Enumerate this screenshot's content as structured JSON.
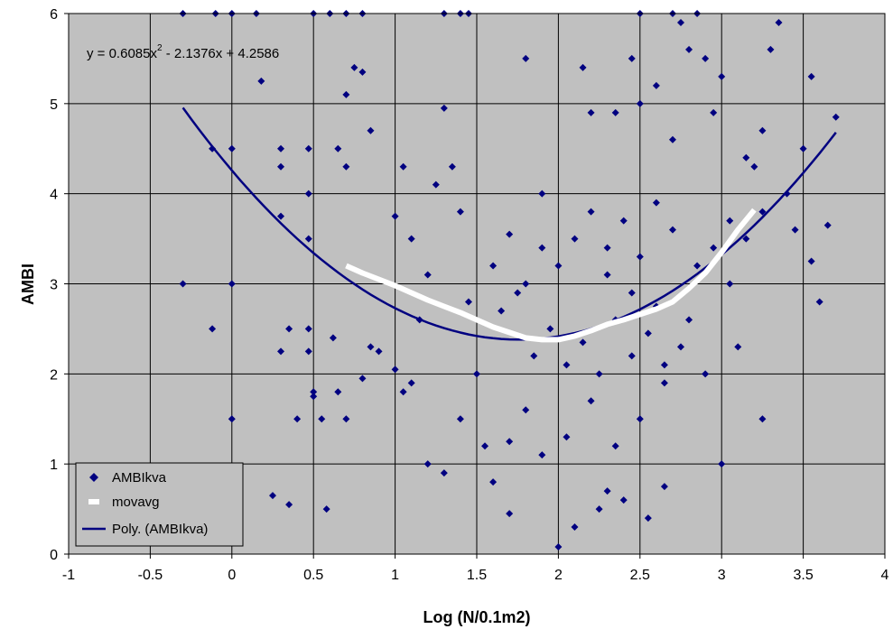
{
  "colors": {
    "plot_bg": "#c0c0c0",
    "points": "#000080",
    "movavg": "#ffffff",
    "trend": "#000080",
    "grid": "#000000"
  },
  "chart_data": {
    "type": "scatter",
    "xlabel": "Log (N/0.1m2)",
    "ylabel": "AMBI",
    "xlim": [
      -1,
      4
    ],
    "ylim": [
      0,
      6
    ],
    "x_ticks": [
      "-1",
      "-0.5",
      "0",
      "0.5",
      "1",
      "1.5",
      "2",
      "2.5",
      "3",
      "3.5",
      "4"
    ],
    "y_ticks": [
      "0",
      "1",
      "2",
      "3",
      "4",
      "5",
      "6"
    ],
    "grid": true,
    "legend_position": "bottom-left",
    "equation": {
      "prefix": "y = 0.6085x",
      "sup": "2",
      "suffix": " - 2.1376x + 4.2586"
    },
    "trendline": {
      "name": "Poly. (AMBIkva)",
      "a": 0.6085,
      "b": -2.1376,
      "c": 4.2586,
      "x_range": [
        -0.3,
        3.7
      ]
    },
    "series": [
      {
        "name": "AMBIkva",
        "points": [
          [
            0,
            6
          ],
          [
            -0.3,
            3
          ],
          [
            -0.12,
            2.5
          ],
          [
            -0.12,
            4.5
          ],
          [
            0,
            4.5
          ],
          [
            0,
            3
          ],
          [
            0,
            1.5
          ],
          [
            -0.3,
            6
          ],
          [
            -0.1,
            6
          ],
          [
            0.15,
            6
          ],
          [
            0.5,
            6
          ],
          [
            0.6,
            6
          ],
          [
            0.7,
            6
          ],
          [
            0.8,
            6
          ],
          [
            1.3,
            6
          ],
          [
            1.4,
            6
          ],
          [
            1.45,
            6
          ],
          [
            2.5,
            6
          ],
          [
            2.7,
            6
          ],
          [
            2.85,
            6
          ],
          [
            0.18,
            5.25
          ],
          [
            0.3,
            4.5
          ],
          [
            0.3,
            4.3
          ],
          [
            0.3,
            3.75
          ],
          [
            0.3,
            2.25
          ],
          [
            0.35,
            2.5
          ],
          [
            0.47,
            4
          ],
          [
            0.47,
            4.5
          ],
          [
            0.47,
            3.5
          ],
          [
            0.47,
            2.25
          ],
          [
            0.47,
            2.5
          ],
          [
            0.5,
            1.8
          ],
          [
            0.5,
            1.75
          ],
          [
            0.55,
            1.5
          ],
          [
            0.25,
            0.65
          ],
          [
            0.35,
            0.55
          ],
          [
            0.58,
            0.5
          ],
          [
            0.4,
            1.5
          ],
          [
            0.65,
            4.5
          ],
          [
            0.7,
            4.3
          ],
          [
            0.75,
            5.4
          ],
          [
            0.8,
            5.35
          ],
          [
            0.85,
            4.7
          ],
          [
            0.7,
            5.1
          ],
          [
            0.62,
            2.4
          ],
          [
            0.65,
            1.8
          ],
          [
            0.7,
            1.5
          ],
          [
            0.8,
            1.95
          ],
          [
            0.85,
            2.3
          ],
          [
            0.9,
            2.25
          ],
          [
            1.0,
            2.05
          ],
          [
            1.05,
            1.8
          ],
          [
            1.1,
            1.9
          ],
          [
            1.15,
            2.6
          ],
          [
            1.0,
            3.75
          ],
          [
            1.05,
            4.3
          ],
          [
            1.1,
            3.5
          ],
          [
            1.2,
            3.1
          ],
          [
            1.25,
            4.1
          ],
          [
            1.3,
            4.95
          ],
          [
            1.35,
            4.3
          ],
          [
            1.4,
            3.8
          ],
          [
            1.45,
            2.8
          ],
          [
            1.5,
            2.0
          ],
          [
            1.55,
            1.2
          ],
          [
            1.6,
            0.8
          ],
          [
            1.7,
            0.45
          ],
          [
            1.8,
            5.5
          ],
          [
            1.9,
            4.0
          ],
          [
            2.0,
            0.08
          ],
          [
            2.1,
            0.3
          ],
          [
            2.15,
            5.4
          ],
          [
            2.2,
            4.9
          ],
          [
            2.25,
            0.5
          ],
          [
            2.3,
            0.7
          ],
          [
            2.35,
            4.9
          ],
          [
            2.4,
            0.6
          ],
          [
            2.45,
            5.5
          ],
          [
            2.5,
            5.0
          ],
          [
            2.55,
            0.4
          ],
          [
            2.6,
            5.2
          ],
          [
            2.65,
            0.75
          ],
          [
            2.7,
            4.6
          ],
          [
            2.75,
            5.9
          ],
          [
            2.8,
            5.6
          ],
          [
            2.9,
            5.5
          ],
          [
            2.95,
            4.9
          ],
          [
            3.0,
            5.3
          ],
          [
            3.05,
            3.0
          ],
          [
            3.1,
            2.3
          ],
          [
            3.15,
            4.4
          ],
          [
            3.2,
            4.3
          ],
          [
            3.25,
            4.7
          ],
          [
            3.3,
            5.6
          ],
          [
            3.35,
            5.9
          ],
          [
            3.4,
            4.0
          ],
          [
            3.45,
            3.6
          ],
          [
            3.5,
            4.5
          ],
          [
            3.55,
            3.25
          ],
          [
            3.6,
            2.8
          ],
          [
            3.65,
            3.65
          ],
          [
            3.7,
            4.85
          ],
          [
            3.55,
            5.3
          ],
          [
            3.25,
            1.5
          ],
          [
            3.0,
            1.0
          ],
          [
            2.9,
            2.0
          ],
          [
            1.2,
            1.0
          ],
          [
            1.3,
            0.9
          ],
          [
            1.4,
            1.5
          ],
          [
            1.7,
            1.25
          ],
          [
            1.8,
            1.6
          ],
          [
            1.9,
            1.1
          ],
          [
            2.05,
            1.3
          ],
          [
            2.2,
            1.7
          ],
          [
            2.35,
            1.2
          ],
          [
            2.5,
            1.5
          ],
          [
            2.65,
            1.9
          ],
          [
            2.8,
            2.6
          ],
          [
            1.6,
            3.2
          ],
          [
            1.7,
            3.55
          ],
          [
            1.8,
            3.0
          ],
          [
            1.9,
            3.4
          ],
          [
            2.0,
            3.2
          ],
          [
            2.1,
            3.5
          ],
          [
            2.2,
            3.8
          ],
          [
            2.3,
            3.4
          ],
          [
            2.4,
            3.7
          ],
          [
            2.5,
            3.3
          ],
          [
            2.6,
            3.9
          ],
          [
            2.7,
            3.6
          ],
          [
            1.85,
            2.2
          ],
          [
            1.95,
            2.5
          ],
          [
            2.05,
            2.1
          ],
          [
            2.15,
            2.35
          ],
          [
            2.25,
            2.0
          ],
          [
            2.35,
            2.6
          ],
          [
            2.45,
            2.2
          ],
          [
            2.55,
            2.45
          ],
          [
            2.65,
            2.1
          ],
          [
            2.75,
            2.3
          ],
          [
            1.65,
            2.7
          ],
          [
            1.75,
            2.9
          ],
          [
            2.3,
            3.1
          ],
          [
            2.45,
            2.9
          ],
          [
            2.6,
            2.75
          ],
          [
            2.85,
            3.2
          ],
          [
            2.95,
            3.4
          ],
          [
            3.05,
            3.7
          ],
          [
            3.15,
            3.5
          ],
          [
            3.25,
            3.8
          ]
        ]
      },
      {
        "name": "movavg",
        "points": [
          [
            0.7,
            3.2
          ],
          [
            0.8,
            3.12
          ],
          [
            0.9,
            3.05
          ],
          [
            1.0,
            2.98
          ],
          [
            1.1,
            2.9
          ],
          [
            1.2,
            2.82
          ],
          [
            1.3,
            2.75
          ],
          [
            1.4,
            2.68
          ],
          [
            1.5,
            2.6
          ],
          [
            1.6,
            2.52
          ],
          [
            1.7,
            2.46
          ],
          [
            1.8,
            2.4
          ],
          [
            1.9,
            2.38
          ],
          [
            2.0,
            2.38
          ],
          [
            2.1,
            2.42
          ],
          [
            2.2,
            2.48
          ],
          [
            2.3,
            2.55
          ],
          [
            2.4,
            2.6
          ],
          [
            2.5,
            2.66
          ],
          [
            2.6,
            2.72
          ],
          [
            2.7,
            2.8
          ],
          [
            2.8,
            2.95
          ],
          [
            2.9,
            3.12
          ],
          [
            3.0,
            3.35
          ],
          [
            3.1,
            3.6
          ],
          [
            3.2,
            3.82
          ]
        ]
      }
    ]
  }
}
